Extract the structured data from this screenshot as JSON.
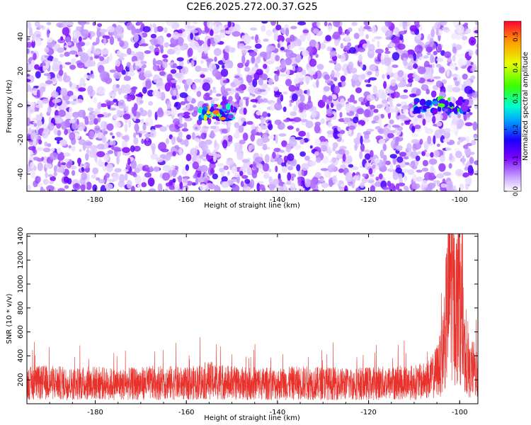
{
  "title": "C2E6.2025.272.00.37.G25",
  "colors": {
    "snr_line": "#e8312b",
    "background": "#ffffff",
    "axis": "#000000"
  },
  "chart_data": [
    {
      "type": "heatmap",
      "xlabel": "Height of straight line (km)",
      "ylabel": "Frequency (Hz)",
      "xlim": [
        -195,
        -96
      ],
      "ylim": [
        -50,
        49
      ],
      "x_ticks": [
        -180,
        -160,
        -140,
        -120,
        -100
      ],
      "y_ticks": [
        -40,
        -20,
        0,
        20,
        40
      ],
      "colorscale": "rainbow (white → purple → blue → cyan → green → yellow → red)",
      "colorbar": {
        "label": "Normalized spectral amplitude",
        "range": [
          0.0,
          0.55
        ],
        "ticks": [
          "0.0",
          "0.1",
          "0.2",
          "0.3",
          "0.4",
          "0.5"
        ]
      },
      "features": [
        {
          "x_range": [
            -157,
            -150
          ],
          "freq": -4,
          "peak_amplitude": 0.5
        },
        {
          "x_range": [
            -110,
            -98
          ],
          "freq": 0,
          "peak_amplitude": 0.35
        }
      ],
      "background_amplitude": 0.03
    },
    {
      "type": "line",
      "xlabel": "Height of straight line (km)",
      "ylabel": "SNR (10 * v/v)",
      "xlim": [
        -195,
        -96
      ],
      "ylim": [
        0,
        1420
      ],
      "x_ticks": [
        -180,
        -160,
        -140,
        -120,
        -100
      ],
      "y_ticks": [
        200,
        400,
        600,
        800,
        1000,
        1200,
        1400
      ],
      "series": [
        {
          "name": "",
          "x": [
            -195,
            -190,
            -185,
            -180,
            -175,
            -170,
            -165,
            -160,
            -155,
            -150,
            -145,
            -140,
            -135,
            -130,
            -125,
            -120,
            -115,
            -110,
            -108,
            -106,
            -104,
            -103,
            -102,
            -101,
            -100,
            -99,
            -98,
            -97,
            -96
          ],
          "values": [
            200,
            210,
            195,
            205,
            190,
            200,
            210,
            195,
            230,
            205,
            200,
            195,
            205,
            200,
            195,
            200,
            205,
            210,
            220,
            260,
            400,
            800,
            1300,
            900,
            1100,
            500,
            300,
            350,
            250
          ]
        }
      ]
    }
  ]
}
